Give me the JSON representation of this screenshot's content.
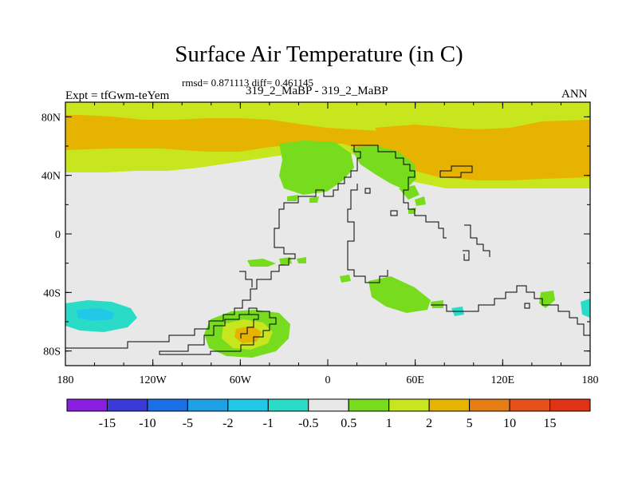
{
  "chart_data": {
    "type": "heatmap",
    "title": "Surface Air Temperature (in C)",
    "stats_line": "rmsd= 0.871113 diff= 0.461145",
    "case_label": "319_2_MaBP - 319_2_MaBP",
    "expt_label": "Expt = tfGwm-teYem",
    "season_label": "ANN",
    "xlabel": "",
    "ylabel": "",
    "x_ticks": [
      {
        "value": -180,
        "label": "180"
      },
      {
        "value": -120,
        "label": "120W"
      },
      {
        "value": -60,
        "label": "60W"
      },
      {
        "value": 0,
        "label": "0"
      },
      {
        "value": 60,
        "label": "60E"
      },
      {
        "value": 120,
        "label": "120E"
      },
      {
        "value": 180,
        "label": "180"
      }
    ],
    "y_ticks": [
      {
        "value": 80,
        "label": "80N"
      },
      {
        "value": 40,
        "label": "40N"
      },
      {
        "value": 0,
        "label": "0"
      },
      {
        "value": -40,
        "label": "40S"
      },
      {
        "value": -80,
        "label": "80S"
      }
    ],
    "xlim": [
      -180,
      180
    ],
    "ylim": [
      -90,
      90
    ],
    "colorbar": {
      "labels": [
        "-15",
        "-10",
        "-5",
        "-2",
        "-1",
        "-0.5",
        "0.5",
        "1",
        "2",
        "5",
        "10",
        "15"
      ],
      "colors": [
        "#8a1ee0",
        "#3a3ad8",
        "#1a6ee6",
        "#1ea0e6",
        "#22c8e8",
        "#2adcc8",
        "#e8e8e8",
        "#78dc1e",
        "#c8e61e",
        "#e6b400",
        "#e67e14",
        "#e6501a",
        "#e03214"
      ]
    },
    "regions": [
      {
        "level": "2 to 5",
        "color": "#e6b400",
        "description": "northern high latitudes 50N-90N"
      },
      {
        "level": "1 to 2",
        "color": "#c8e61e",
        "description": "polar band near 80N and belt near 35N-45N"
      },
      {
        "level": "0.5 to 1",
        "color": "#78dc1e",
        "description": "patches over continents and southern ocean near 60S-70S"
      },
      {
        "level": "-1 to -0.5",
        "color": "#2adcc8",
        "description": "patches near 170W 55S and 180E 55S"
      },
      {
        "level": "-0.5 to 0.5",
        "color": "#e8e8e8",
        "description": "most of tropics and southern hemisphere"
      }
    ]
  }
}
